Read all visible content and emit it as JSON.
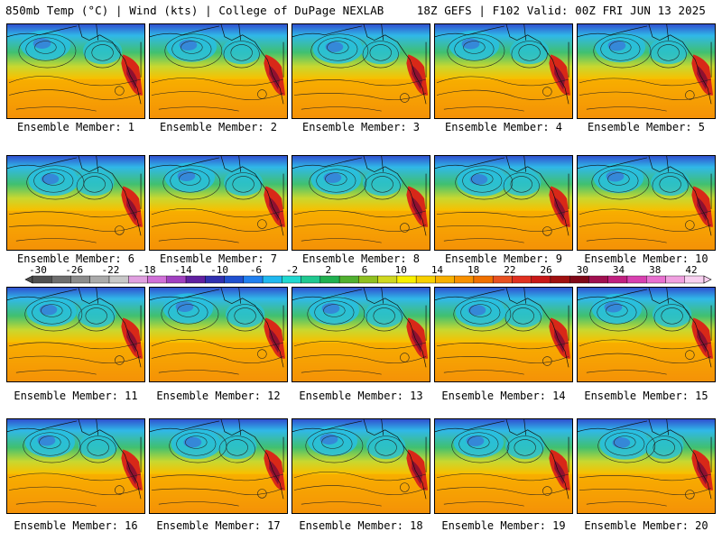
{
  "header": {
    "left": "850mb Temp (°C) | Wind (kts) | College of DuPage NEXLAB",
    "right": "18Z GEFS | F102 Valid: 00Z FRI JUN 13 2025"
  },
  "panels": [
    "Ensemble Member: 1",
    "Ensemble Member: 2",
    "Ensemble Member: 3",
    "Ensemble Member: 4",
    "Ensemble Member: 5",
    "Ensemble Member: 6",
    "Ensemble Member: 7",
    "Ensemble Member: 8",
    "Ensemble Member: 9",
    "Ensemble Member: 10",
    "Ensemble Member: 11",
    "Ensemble Member: 12",
    "Ensemble Member: 13",
    "Ensemble Member: 14",
    "Ensemble Member: 15",
    "Ensemble Member: 16",
    "Ensemble Member: 17",
    "Ensemble Member: 18",
    "Ensemble Member: 19",
    "Ensemble Member: 20"
  ],
  "colorbar": {
    "ticks": [
      "-30",
      "-26",
      "-22",
      "-18",
      "-14",
      "-10",
      "-6",
      "-2",
      "2",
      "6",
      "10",
      "14",
      "18",
      "22",
      "26",
      "30",
      "34",
      "38",
      "42"
    ],
    "colors": [
      "#505050",
      "#6e6e6e",
      "#8c8c8c",
      "#aaaaaa",
      "#c8c8c8",
      "#e0a0e0",
      "#d070d8",
      "#a040c0",
      "#6020a0",
      "#3030b0",
      "#2050d0",
      "#2080f0",
      "#20b8f0",
      "#20d8d0",
      "#20c890",
      "#20b050",
      "#50b030",
      "#90c020",
      "#d0d820",
      "#f8f000",
      "#f8d000",
      "#f8b000",
      "#f89000",
      "#f07000",
      "#e85020",
      "#e03020",
      "#c81818",
      "#a01010",
      "#800818",
      "#a01050",
      "#c02080",
      "#d840b0",
      "#e870d0",
      "#f0a0e0",
      "#f8d0f0"
    ]
  }
}
